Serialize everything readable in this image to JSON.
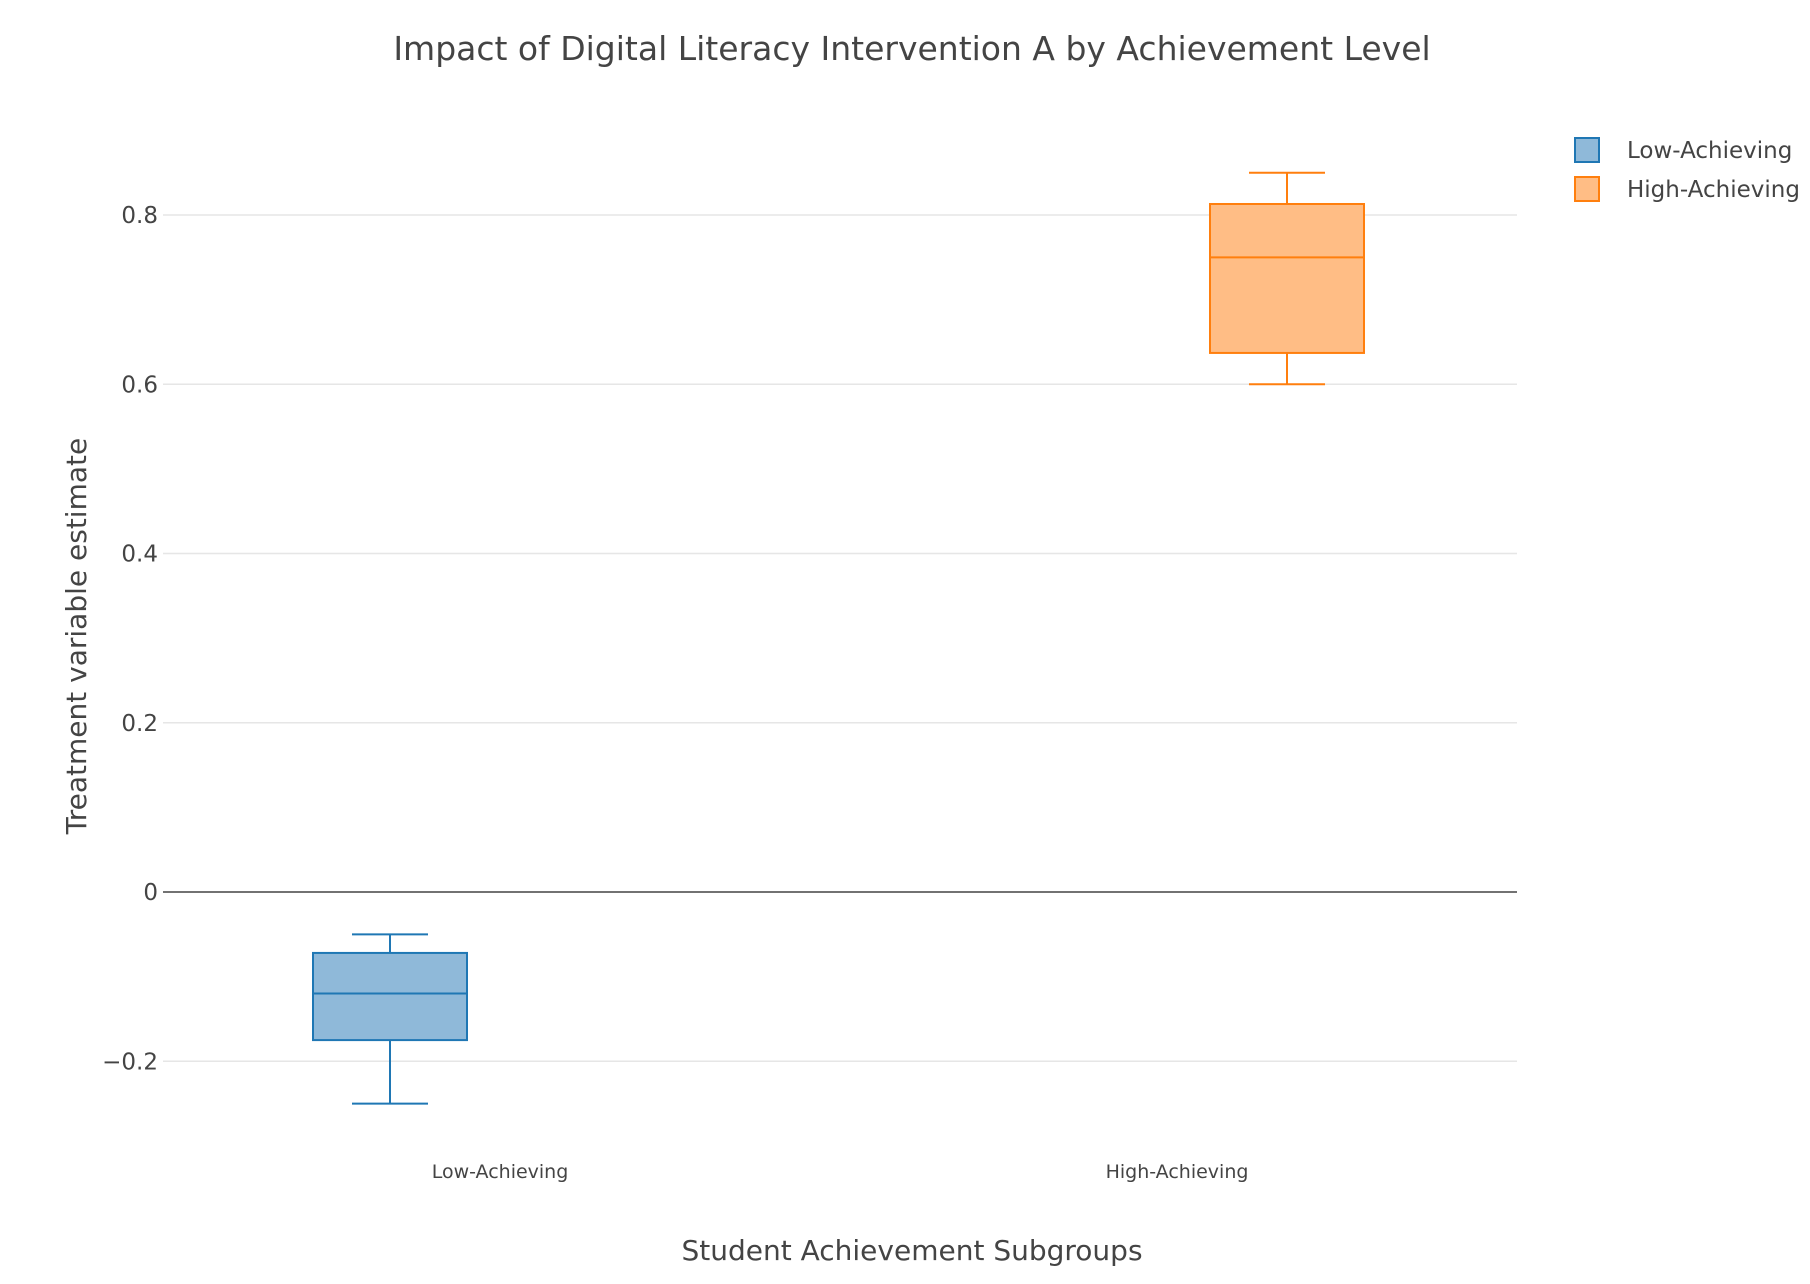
{
  "chart_data": {
    "type": "box",
    "title": "Impact of Digital Literacy Intervention A by Achievement Level",
    "xlabel": "Student Achievement Subgroups",
    "ylabel": "Treatment variable estimate",
    "ylim": [
      -0.3,
      0.95
    ],
    "yticks": [
      -0.2,
      0,
      0.2,
      0.4,
      0.6,
      0.8
    ],
    "ytick_labels": [
      "−0.2",
      "0",
      "0.2",
      "0.4",
      "0.6",
      "0.8"
    ],
    "categories": [
      "Low-Achieving",
      "High-Achieving"
    ],
    "grid": true,
    "zeroline": true,
    "legend_position": "top-right",
    "series": [
      {
        "name": "Low-Achieving",
        "category": "Low-Achieving",
        "min": -0.25,
        "q1": -0.175,
        "median": -0.12,
        "q3": -0.072,
        "max": -0.05,
        "line_color": "#1f77b4",
        "fill_color": "#8fb9d9"
      },
      {
        "name": "High-Achieving",
        "category": "High-Achieving",
        "min": 0.6,
        "q1": 0.637,
        "median": 0.75,
        "q3": 0.813,
        "max": 0.85,
        "line_color": "#ff7f0e",
        "fill_color": "#ffbd85"
      }
    ]
  }
}
